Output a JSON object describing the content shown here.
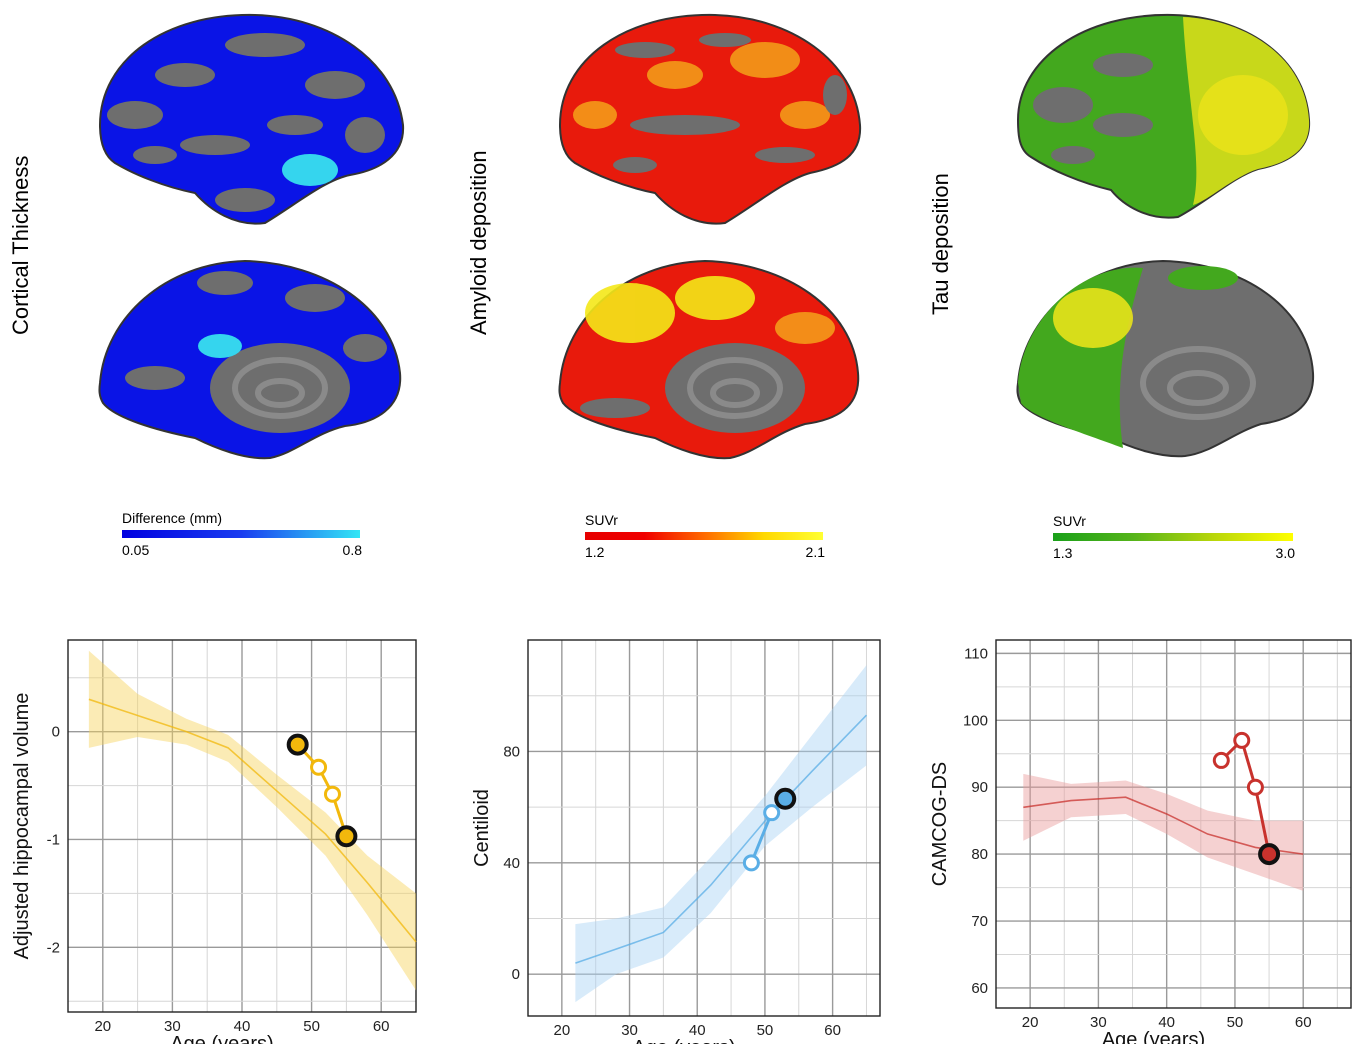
{
  "panels": [
    {
      "label": "Cortical Thickness",
      "colorbar": {
        "title": "Difference (mm)",
        "min": "0.05",
        "max": "0.8",
        "colors": [
          "#0000e0",
          "#1a3cf0",
          "#33e6f5"
        ]
      },
      "brain_colors": {
        "base": "#0a14e6",
        "gray": "#6e6e6e",
        "highlight": "#35d5ee"
      }
    },
    {
      "label": "Amyloid deposition",
      "colorbar": {
        "title": "SUVr",
        "min": "1.2",
        "max": "2.1",
        "colors": [
          "#e60000",
          "#f00000",
          "#ff6a00",
          "#ffd800",
          "#ffff33"
        ]
      },
      "brain_colors": {
        "base": "#e81a0c",
        "gray": "#6e6e6e",
        "highlight": "#f4e818"
      }
    },
    {
      "label": "Tau deposition",
      "colorbar": {
        "title": "SUVr",
        "min": "1.3",
        "max": "3.0",
        "colors": [
          "#1aa01a",
          "#55b41a",
          "#b8d60a",
          "#ffff00"
        ]
      },
      "brain_colors": {
        "base": "#43a81e",
        "gray": "#6e6e6e",
        "highlight": "#e8e21a"
      }
    }
  ],
  "chart_data": [
    {
      "type": "line",
      "xlabel": "Age (years)",
      "ylabel": "Adjusted hippocampal volume",
      "xlim": [
        15,
        65
      ],
      "ylim": [
        -2.6,
        0.85
      ],
      "xticks": [
        "20",
        "30",
        "40",
        "50",
        "60"
      ],
      "yticks": [
        "0",
        "-1",
        "-2"
      ],
      "ytick_values": [
        0,
        -1,
        -2
      ],
      "color": "#f2b80c",
      "band_color": "#f7d35a",
      "trend": {
        "x": [
          18,
          25,
          32,
          38,
          45,
          52,
          58,
          65
        ],
        "y": [
          0.3,
          0.15,
          0.0,
          -0.15,
          -0.55,
          -0.95,
          -1.4,
          -1.95
        ]
      },
      "band_upper": [
        0.75,
        0.35,
        0.12,
        -0.03,
        -0.4,
        -0.75,
        -1.15,
        -1.5
      ],
      "band_lower": [
        -0.15,
        -0.05,
        -0.12,
        -0.28,
        -0.7,
        -1.15,
        -1.7,
        -2.4
      ],
      "subject": {
        "x": [
          48,
          51,
          53,
          55
        ],
        "y": [
          -0.12,
          -0.33,
          -0.58,
          -0.97
        ],
        "highlighted": [
          true,
          false,
          false,
          true
        ]
      }
    },
    {
      "type": "line",
      "xlabel": "Age (years)",
      "ylabel": "Centiloid",
      "xlim": [
        15,
        67
      ],
      "ylim": [
        -15,
        120
      ],
      "xticks": [
        "20",
        "30",
        "40",
        "50",
        "60"
      ],
      "yticks": [
        "0",
        "40",
        "80"
      ],
      "ytick_values": [
        0,
        40,
        80
      ],
      "color": "#5aaee6",
      "band_color": "#a9d3f5",
      "trend": {
        "x": [
          22,
          28,
          35,
          42,
          50,
          57,
          65
        ],
        "y": [
          4,
          9,
          15,
          32,
          55,
          73,
          93
        ]
      },
      "band_upper": [
        18,
        20,
        24,
        42,
        64,
        86,
        111
      ],
      "band_lower": [
        -10,
        0,
        6,
        22,
        46,
        60,
        75
      ],
      "subject": {
        "x": [
          48,
          51,
          53
        ],
        "y": [
          40,
          58,
          63
        ],
        "highlighted": [
          false,
          false,
          true
        ]
      }
    },
    {
      "type": "line",
      "xlabel": "Age (years)",
      "ylabel": "CAMCOG-DS",
      "xlim": [
        15,
        67
      ],
      "ylim": [
        57,
        112
      ],
      "xticks": [
        "20",
        "30",
        "40",
        "50",
        "60"
      ],
      "yticks": [
        "60",
        "70",
        "80",
        "90",
        "100",
        "110"
      ],
      "ytick_values": [
        60,
        70,
        80,
        90,
        100,
        110
      ],
      "color": "#c8322d",
      "band_color": "#e89a9a",
      "trend": {
        "x": [
          19,
          26,
          34,
          40,
          46,
          53,
          60
        ],
        "y": [
          87,
          88,
          88.5,
          86,
          83,
          81,
          80
        ]
      },
      "band_upper": [
        92,
        90.5,
        91,
        89,
        86.5,
        85,
        85
      ],
      "band_lower": [
        82,
        85.5,
        86,
        83,
        79.5,
        77,
        74.5
      ],
      "subject": {
        "x": [
          48,
          51,
          53,
          55
        ],
        "y": [
          94,
          97,
          90,
          80
        ],
        "highlighted": [
          false,
          false,
          false,
          true
        ]
      }
    }
  ]
}
